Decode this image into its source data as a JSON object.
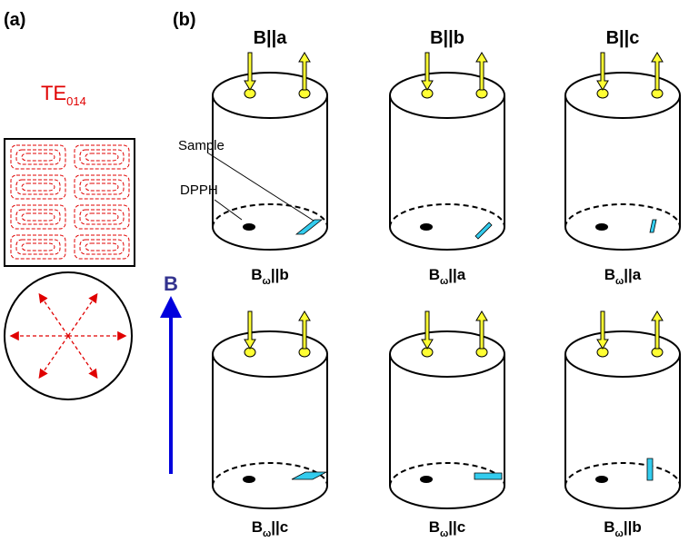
{
  "panel_a": {
    "label": "(a)",
    "mode": {
      "text": "TE",
      "subscript": "014"
    }
  },
  "panel_b": {
    "label": "(b)",
    "columns": [
      "B||a",
      "B||b",
      "B||c"
    ],
    "cylinders": [
      {
        "field": "B",
        "subscript": "ω",
        "orientation": "||b"
      },
      {
        "field": "B",
        "subscript": "ω",
        "orientation": "||a"
      },
      {
        "field": "B",
        "subscript": "ω",
        "orientation": "||a"
      },
      {
        "field": "B",
        "subscript": "ω",
        "orientation": "||c"
      },
      {
        "field": "B",
        "subscript": "ω",
        "orientation": "||c"
      },
      {
        "field": "B",
        "subscript": "ω",
        "orientation": "||b"
      }
    ],
    "annotations": {
      "sample": "Sample",
      "dpph": "DPPH"
    },
    "field_arrow": "B"
  }
}
